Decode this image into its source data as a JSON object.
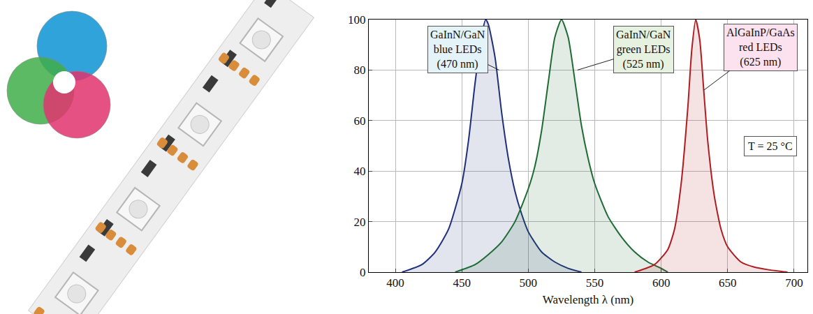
{
  "chart_data": {
    "type": "area",
    "xlabel": "Wavelength λ (nm)",
    "xlim": [
      380,
      710
    ],
    "xticks": [
      400,
      450,
      500,
      550,
      600,
      650,
      700
    ],
    "ylim": [
      0,
      100
    ],
    "yticks": [
      0,
      20,
      40,
      60,
      80,
      100
    ],
    "grid": true,
    "series": [
      {
        "label": [
          "GaInN/GaN",
          "blue LEDs",
          "(470 nm)"
        ],
        "color": "#1f2f7a",
        "x": [
          405,
          420,
          430,
          440,
          450,
          455,
          460,
          465,
          468,
          470,
          475,
          480,
          485,
          490,
          495,
          500,
          510,
          520,
          530,
          540
        ],
        "values": [
          0,
          3,
          8,
          17,
          35,
          52,
          75,
          94,
          100,
          98,
          85,
          63,
          45,
          32,
          23,
          16,
          8,
          4,
          1.5,
          0
        ]
      },
      {
        "label": [
          "GaInN/GaN",
          "green LEDs",
          "(525 nm)"
        ],
        "color": "#1e6b34",
        "x": [
          445,
          460,
          470,
          480,
          490,
          500,
          505,
          510,
          515,
          520,
          525,
          530,
          535,
          540,
          545,
          550,
          560,
          570,
          580,
          590,
          600,
          605
        ],
        "values": [
          0,
          3,
          7,
          12,
          20,
          33,
          42,
          56,
          75,
          93,
          100,
          93,
          76,
          58,
          45,
          35,
          22,
          14,
          8,
          4,
          1.5,
          0
        ]
      },
      {
        "label": [
          "AlGaInP/GaAs",
          "red LEDs",
          "(625 nm)"
        ],
        "color": "#b01c22",
        "x": [
          580,
          595,
          605,
          610,
          615,
          620,
          623,
          626,
          629,
          632,
          635,
          640,
          645,
          650,
          660,
          670,
          680,
          695
        ],
        "values": [
          0,
          3,
          9,
          17,
          35,
          65,
          88,
          100,
          92,
          72,
          52,
          30,
          17,
          10,
          4,
          2,
          1,
          0
        ]
      }
    ],
    "annotations": [
      {
        "text": "T = 25 °C"
      }
    ]
  }
}
